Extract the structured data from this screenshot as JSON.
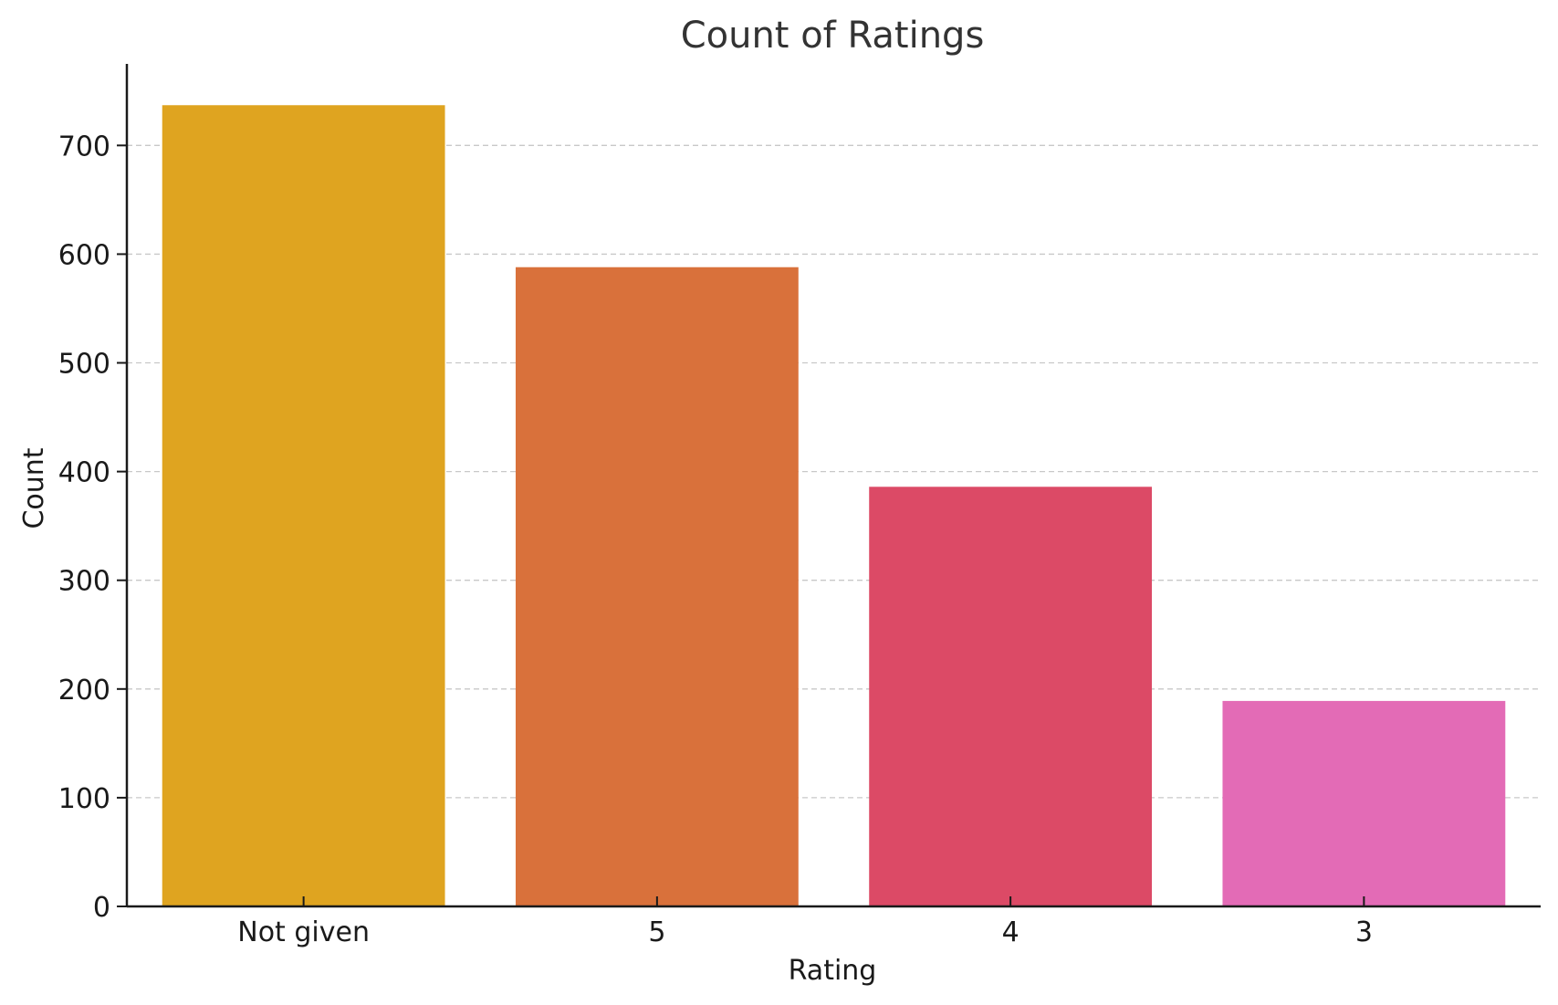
{
  "chart_data": {
    "type": "bar",
    "title": "Count of Ratings",
    "xlabel": "Rating",
    "ylabel": "Count",
    "categories": [
      "Not given",
      "5",
      "4",
      "3"
    ],
    "values": [
      737,
      588,
      386,
      189
    ],
    "bar_colors": [
      "#dfa420",
      "#d9713b",
      "#dc4a66",
      "#e36bb6"
    ],
    "ylim": [
      0,
      775
    ],
    "yticks": [
      0,
      100,
      200,
      300,
      400,
      500,
      600,
      700
    ],
    "ytick_labels": [
      "0",
      "100",
      "200",
      "300",
      "400",
      "500",
      "600",
      "700"
    ],
    "grid": {
      "axis": "y",
      "style": "dashed",
      "color": "#c8c8c8"
    },
    "legend": "none"
  }
}
